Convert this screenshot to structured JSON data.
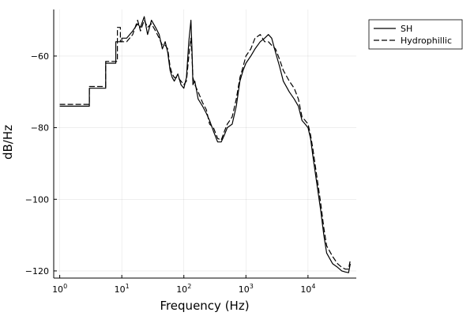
{
  "chart_data": {
    "type": "line",
    "title": "",
    "xlabel": "Frequency (Hz)",
    "ylabel": "dB/Hz",
    "x_scale": "log",
    "xlim": [
      0.8,
      60000
    ],
    "ylim": [
      -122,
      -47
    ],
    "x_ticks": [
      {
        "value": 1,
        "base": "10",
        "exp": "0"
      },
      {
        "value": 10,
        "base": "10",
        "exp": "1"
      },
      {
        "value": 100,
        "base": "10",
        "exp": "2"
      },
      {
        "value": 1000,
        "base": "10",
        "exp": "3"
      },
      {
        "value": 10000,
        "base": "10",
        "exp": "4"
      }
    ],
    "y_ticks": [
      {
        "value": -60,
        "label": "−60"
      },
      {
        "value": -80,
        "label": "−80"
      },
      {
        "value": -100,
        "label": "−100"
      },
      {
        "value": -120,
        "label": "−120"
      }
    ],
    "grid": true,
    "legend_position": "top-right",
    "series": [
      {
        "name": "SH",
        "color": "#000000",
        "dash": "",
        "x": [
          1,
          3,
          3,
          5.5,
          5.5,
          8,
          8,
          10,
          10,
          12,
          15,
          18,
          20,
          23,
          26,
          30,
          35,
          40,
          45,
          50,
          55,
          60,
          65,
          70,
          80,
          90,
          100,
          110,
          120,
          130,
          135,
          140,
          150,
          170,
          200,
          230,
          260,
          300,
          350,
          400,
          450,
          500,
          600,
          700,
          800,
          900,
          1000,
          1200,
          1400,
          1700,
          2000,
          2300,
          2600,
          3000,
          3500,
          4000,
          5000,
          6000,
          7000,
          8000,
          9000,
          10000,
          11000,
          12000,
          14000,
          16000,
          18000,
          20000,
          25000,
          30000,
          35000,
          40000,
          45000,
          48000
        ],
        "y": [
          -74,
          -74,
          -69,
          -69,
          -62,
          -62,
          -56,
          -56,
          -55,
          -55,
          -53,
          -51,
          -52,
          -49,
          -54,
          -50,
          -52,
          -54,
          -58,
          -56,
          -59,
          -64,
          -66,
          -67,
          -65,
          -68,
          -69,
          -66,
          -56,
          -50,
          -58,
          -68,
          -67,
          -72,
          -74,
          -76,
          -78,
          -81,
          -84,
          -84,
          -82,
          -80,
          -79,
          -74,
          -67,
          -64,
          -62,
          -60,
          -58,
          -56,
          -55,
          -54,
          -55,
          -59,
          -63,
          -67,
          -70,
          -72,
          -74,
          -78,
          -79,
          -80,
          -83,
          -88,
          -96,
          -103,
          -110,
          -115,
          -118,
          -119,
          -120,
          -120.3,
          -120.5,
          -118
        ]
      },
      {
        "name": "Hydrophillic",
        "color": "#000000",
        "dash": "7,3",
        "x": [
          1,
          3,
          3,
          5.5,
          5.5,
          8.5,
          8.5,
          9.5,
          9.5,
          12,
          15,
          18,
          20,
          23,
          26,
          30,
          35,
          40,
          45,
          50,
          55,
          60,
          65,
          70,
          80,
          90,
          100,
          110,
          120,
          130,
          135,
          140,
          150,
          170,
          200,
          230,
          260,
          300,
          350,
          400,
          450,
          500,
          600,
          700,
          800,
          900,
          1000,
          1200,
          1400,
          1700,
          2000,
          2300,
          2600,
          3000,
          3500,
          4000,
          5000,
          6000,
          7000,
          8000,
          9000,
          10000,
          11000,
          12000,
          14000,
          16000,
          18000,
          20000,
          25000,
          30000,
          35000,
          40000,
          45000,
          48000
        ],
        "y": [
          -73.5,
          -73.5,
          -68.5,
          -68.5,
          -61.5,
          -61.5,
          -52,
          -52,
          -56,
          -56,
          -54,
          -50,
          -53,
          -50,
          -52,
          -51,
          -53,
          -55,
          -57,
          -57,
          -58,
          -63,
          -65,
          -66,
          -66,
          -67,
          -68,
          -67,
          -60,
          -55,
          -60,
          -66,
          -68,
          -70,
          -73,
          -75,
          -79,
          -80,
          -83,
          -83.5,
          -81,
          -79,
          -77,
          -72,
          -66,
          -63,
          -60,
          -58,
          -55,
          -54,
          -56,
          -56,
          -57,
          -58,
          -61,
          -64,
          -67,
          -69,
          -72,
          -77,
          -78,
          -79,
          -82,
          -86,
          -94,
          -101,
          -108,
          -113,
          -116,
          -118,
          -119,
          -119.5,
          -119.5,
          -117
        ]
      }
    ]
  }
}
